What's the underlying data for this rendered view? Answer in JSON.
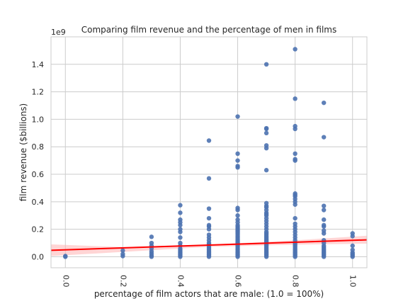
{
  "chart_data": {
    "type": "scatter",
    "title": "Comparing film revenue and the percentage of men in films",
    "xlabel": "percentage of film actors that are male: (1.0 = 100%)",
    "ylabel": "film revenue ($billions)",
    "y_offset_label": "1e9",
    "xlim": [
      -0.05,
      1.05
    ],
    "ylim": [
      -0.08,
      1.6
    ],
    "x_ticks": [
      0.0,
      0.2,
      0.4,
      0.6,
      0.8,
      1.0
    ],
    "x_tick_labels": [
      "0.0",
      "0.2",
      "0.4",
      "0.6",
      "0.8",
      "1.0"
    ],
    "y_ticks": [
      0.0,
      0.2,
      0.4,
      0.6,
      0.8,
      1.0,
      1.2,
      1.4
    ],
    "y_tick_labels": [
      "0.0",
      "0.2",
      "0.4",
      "0.6",
      "0.8",
      "1.0",
      "1.2",
      "1.4"
    ],
    "grid": true,
    "point_color": "#4c72b0",
    "regression": {
      "color": "#ff0000",
      "band_color": "#ffb3b3",
      "line": [
        [
          -0.05,
          0.047
        ],
        [
          1.05,
          0.123
        ]
      ],
      "band_upper": [
        [
          -0.05,
          0.09
        ],
        [
          0.2,
          0.07
        ],
        [
          0.5,
          0.088
        ],
        [
          0.8,
          0.12
        ],
        [
          1.05,
          0.153
        ]
      ],
      "band_lower": [
        [
          -0.05,
          0.005
        ],
        [
          0.2,
          0.035
        ],
        [
          0.5,
          0.072
        ],
        [
          0.8,
          0.088
        ],
        [
          1.05,
          0.095
        ]
      ]
    },
    "series": [
      {
        "points": [
          [
            0.0,
            0.0
          ],
          [
            0.0,
            0.005
          ],
          [
            0.2,
            0.005
          ],
          [
            0.2,
            0.02
          ],
          [
            0.2,
            0.045
          ],
          [
            0.3,
            0.0
          ],
          [
            0.3,
            0.01
          ],
          [
            0.3,
            0.025
          ],
          [
            0.3,
            0.04
          ],
          [
            0.3,
            0.06
          ],
          [
            0.3,
            0.08
          ],
          [
            0.3,
            0.1
          ],
          [
            0.3,
            0.145
          ],
          [
            0.4,
            0.0
          ],
          [
            0.4,
            0.01
          ],
          [
            0.4,
            0.02
          ],
          [
            0.4,
            0.03
          ],
          [
            0.4,
            0.04
          ],
          [
            0.4,
            0.05
          ],
          [
            0.4,
            0.06
          ],
          [
            0.4,
            0.08
          ],
          [
            0.4,
            0.1
          ],
          [
            0.4,
            0.14
          ],
          [
            0.4,
            0.18
          ],
          [
            0.4,
            0.2
          ],
          [
            0.4,
            0.23
          ],
          [
            0.4,
            0.25
          ],
          [
            0.4,
            0.27
          ],
          [
            0.4,
            0.32
          ],
          [
            0.4,
            0.375
          ],
          [
            0.5,
            0.0
          ],
          [
            0.5,
            0.01
          ],
          [
            0.5,
            0.02
          ],
          [
            0.5,
            0.03
          ],
          [
            0.5,
            0.04
          ],
          [
            0.5,
            0.05
          ],
          [
            0.5,
            0.06
          ],
          [
            0.5,
            0.07
          ],
          [
            0.5,
            0.08
          ],
          [
            0.5,
            0.09
          ],
          [
            0.5,
            0.1
          ],
          [
            0.5,
            0.12
          ],
          [
            0.5,
            0.14
          ],
          [
            0.5,
            0.16
          ],
          [
            0.5,
            0.2
          ],
          [
            0.5,
            0.22
          ],
          [
            0.5,
            0.23
          ],
          [
            0.5,
            0.28
          ],
          [
            0.5,
            0.35
          ],
          [
            0.5,
            0.57
          ],
          [
            0.5,
            0.845
          ],
          [
            0.6,
            0.0
          ],
          [
            0.6,
            0.01
          ],
          [
            0.6,
            0.02
          ],
          [
            0.6,
            0.03
          ],
          [
            0.6,
            0.04
          ],
          [
            0.6,
            0.05
          ],
          [
            0.6,
            0.06
          ],
          [
            0.6,
            0.07
          ],
          [
            0.6,
            0.08
          ],
          [
            0.6,
            0.09
          ],
          [
            0.6,
            0.1
          ],
          [
            0.6,
            0.11
          ],
          [
            0.6,
            0.12
          ],
          [
            0.6,
            0.13
          ],
          [
            0.6,
            0.14
          ],
          [
            0.6,
            0.15
          ],
          [
            0.6,
            0.16
          ],
          [
            0.6,
            0.17
          ],
          [
            0.6,
            0.18
          ],
          [
            0.6,
            0.19
          ],
          [
            0.6,
            0.2
          ],
          [
            0.6,
            0.21
          ],
          [
            0.6,
            0.22
          ],
          [
            0.6,
            0.23
          ],
          [
            0.6,
            0.25
          ],
          [
            0.6,
            0.27
          ],
          [
            0.6,
            0.3
          ],
          [
            0.6,
            0.34
          ],
          [
            0.6,
            0.355
          ],
          [
            0.6,
            0.65
          ],
          [
            0.6,
            0.66
          ],
          [
            0.6,
            0.7
          ],
          [
            0.6,
            0.75
          ],
          [
            0.6,
            1.02
          ],
          [
            0.7,
            0.0
          ],
          [
            0.7,
            0.01
          ],
          [
            0.7,
            0.02
          ],
          [
            0.7,
            0.03
          ],
          [
            0.7,
            0.04
          ],
          [
            0.7,
            0.05
          ],
          [
            0.7,
            0.06
          ],
          [
            0.7,
            0.07
          ],
          [
            0.7,
            0.08
          ],
          [
            0.7,
            0.09
          ],
          [
            0.7,
            0.1
          ],
          [
            0.7,
            0.11
          ],
          [
            0.7,
            0.12
          ],
          [
            0.7,
            0.13
          ],
          [
            0.7,
            0.14
          ],
          [
            0.7,
            0.15
          ],
          [
            0.7,
            0.16
          ],
          [
            0.7,
            0.17
          ],
          [
            0.7,
            0.18
          ],
          [
            0.7,
            0.2
          ],
          [
            0.7,
            0.22
          ],
          [
            0.7,
            0.24
          ],
          [
            0.7,
            0.26
          ],
          [
            0.7,
            0.28
          ],
          [
            0.7,
            0.3
          ],
          [
            0.7,
            0.31
          ],
          [
            0.7,
            0.32
          ],
          [
            0.7,
            0.34
          ],
          [
            0.7,
            0.36
          ],
          [
            0.7,
            0.37
          ],
          [
            0.7,
            0.39
          ],
          [
            0.7,
            0.63
          ],
          [
            0.7,
            0.79
          ],
          [
            0.7,
            0.81
          ],
          [
            0.7,
            0.9
          ],
          [
            0.7,
            0.93
          ],
          [
            0.7,
            0.935
          ],
          [
            0.7,
            1.4
          ],
          [
            0.8,
            0.0
          ],
          [
            0.8,
            0.01
          ],
          [
            0.8,
            0.02
          ],
          [
            0.8,
            0.03
          ],
          [
            0.8,
            0.04
          ],
          [
            0.8,
            0.05
          ],
          [
            0.8,
            0.06
          ],
          [
            0.8,
            0.07
          ],
          [
            0.8,
            0.08
          ],
          [
            0.8,
            0.09
          ],
          [
            0.8,
            0.1
          ],
          [
            0.8,
            0.12
          ],
          [
            0.8,
            0.14
          ],
          [
            0.8,
            0.16
          ],
          [
            0.8,
            0.18
          ],
          [
            0.8,
            0.2
          ],
          [
            0.8,
            0.22
          ],
          [
            0.8,
            0.24
          ],
          [
            0.8,
            0.28
          ],
          [
            0.8,
            0.38
          ],
          [
            0.8,
            0.4
          ],
          [
            0.8,
            0.42
          ],
          [
            0.8,
            0.44
          ],
          [
            0.8,
            0.45
          ],
          [
            0.8,
            0.46
          ],
          [
            0.8,
            0.7
          ],
          [
            0.8,
            0.71
          ],
          [
            0.8,
            0.75
          ],
          [
            0.8,
            0.93
          ],
          [
            0.8,
            0.95
          ],
          [
            0.8,
            1.15
          ],
          [
            0.8,
            1.51
          ],
          [
            0.9,
            0.0
          ],
          [
            0.9,
            0.01
          ],
          [
            0.9,
            0.02
          ],
          [
            0.9,
            0.03
          ],
          [
            0.9,
            0.04
          ],
          [
            0.9,
            0.05
          ],
          [
            0.9,
            0.06
          ],
          [
            0.9,
            0.07
          ],
          [
            0.9,
            0.08
          ],
          [
            0.9,
            0.1
          ],
          [
            0.9,
            0.12
          ],
          [
            0.9,
            0.17
          ],
          [
            0.9,
            0.19
          ],
          [
            0.9,
            0.22
          ],
          [
            0.9,
            0.23
          ],
          [
            0.9,
            0.27
          ],
          [
            0.9,
            0.34
          ],
          [
            0.9,
            0.37
          ],
          [
            0.9,
            0.87
          ],
          [
            0.9,
            1.12
          ],
          [
            1.0,
            0.0
          ],
          [
            1.0,
            0.01
          ],
          [
            1.0,
            0.02
          ],
          [
            1.0,
            0.03
          ],
          [
            1.0,
            0.05
          ],
          [
            1.0,
            0.08
          ],
          [
            1.0,
            0.15
          ],
          [
            1.0,
            0.17
          ]
        ]
      }
    ]
  }
}
